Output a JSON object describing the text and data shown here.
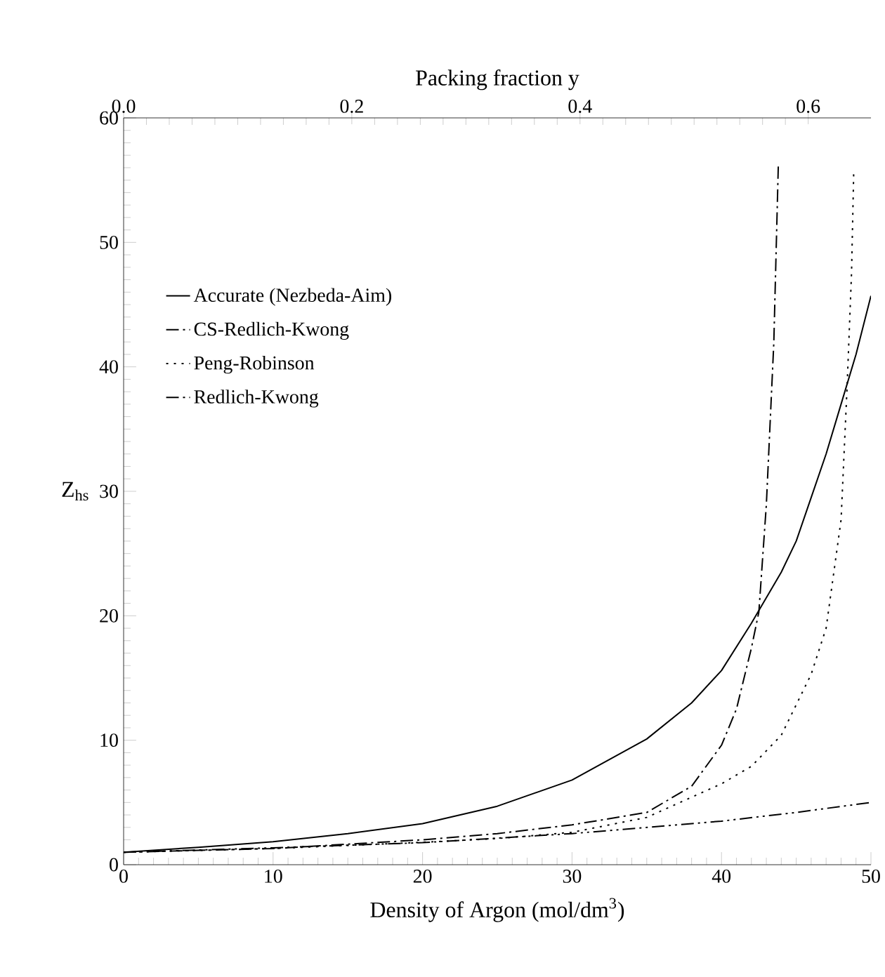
{
  "chart_data": {
    "type": "line",
    "xlabel": "Density of Argon (mol/dm$^{3}$)",
    "ylabel": "Z$_{hs}$",
    "x2label": "Packing fraction y",
    "xlim": [
      0,
      50
    ],
    "xticks": [
      0,
      10,
      20,
      30,
      40,
      50
    ],
    "ylim": [
      0,
      60
    ],
    "yticks": [
      0,
      10,
      20,
      30,
      40,
      50,
      60
    ],
    "x2lim": [
      0,
      0.655
    ],
    "x2ticks": [
      {
        "value": 0,
        "label": "0.0"
      },
      0.2,
      0.4,
      0.6
    ],
    "legend": "top left",
    "grid": false,
    "marker": "none",
    "series": [
      {
        "name": "Accurate (Nezbeda-Aim)",
        "color": "#000000",
        "line_style": "solid",
        "x": [
          0,
          5,
          10,
          15,
          20,
          25,
          30,
          35,
          38,
          40,
          42,
          44,
          45,
          46,
          47,
          48,
          49,
          50
        ],
        "values": [
          1,
          1.4,
          1.85,
          2.5,
          3.3,
          4.7,
          6.8,
          10.1,
          13.0,
          15.6,
          19.4,
          23.5,
          26,
          29.5,
          33,
          37,
          41,
          45.7
        ]
      },
      {
        "name": "CS-Redlich-Kwong",
        "color": "#000000",
        "line_style": "dashdotdotted",
        "x": [
          0,
          10,
          20,
          30,
          40,
          45,
          50
        ],
        "values": [
          1,
          1.36,
          1.77,
          2.5,
          3.5,
          4.2,
          5.0
        ]
      },
      {
        "name": "Peng-Robinson",
        "color": "#000000",
        "line_style": "dotted",
        "x": [
          0,
          10,
          20,
          25,
          30,
          35,
          40,
          42,
          44,
          46,
          47,
          48,
          48.4,
          48.7,
          48.85
        ],
        "values": [
          1,
          1.3,
          1.8,
          2.1,
          2.6,
          3.8,
          6.5,
          7.9,
          10.4,
          15.3,
          19,
          27.7,
          38.3,
          47.5,
          55.8
        ]
      },
      {
        "name": "Redlich-Kwong",
        "color": "#000000",
        "line_style": "dashdotted",
        "x": [
          0,
          10,
          20,
          25,
          30,
          35,
          38,
          40,
          41,
          42,
          42.5,
          43,
          43.5,
          43.8
        ],
        "values": [
          1,
          1.3,
          2.0,
          2.5,
          3.2,
          4.2,
          6.3,
          9.6,
          12.5,
          17.4,
          20.3,
          28.9,
          41.9,
          56.1
        ]
      }
    ]
  }
}
